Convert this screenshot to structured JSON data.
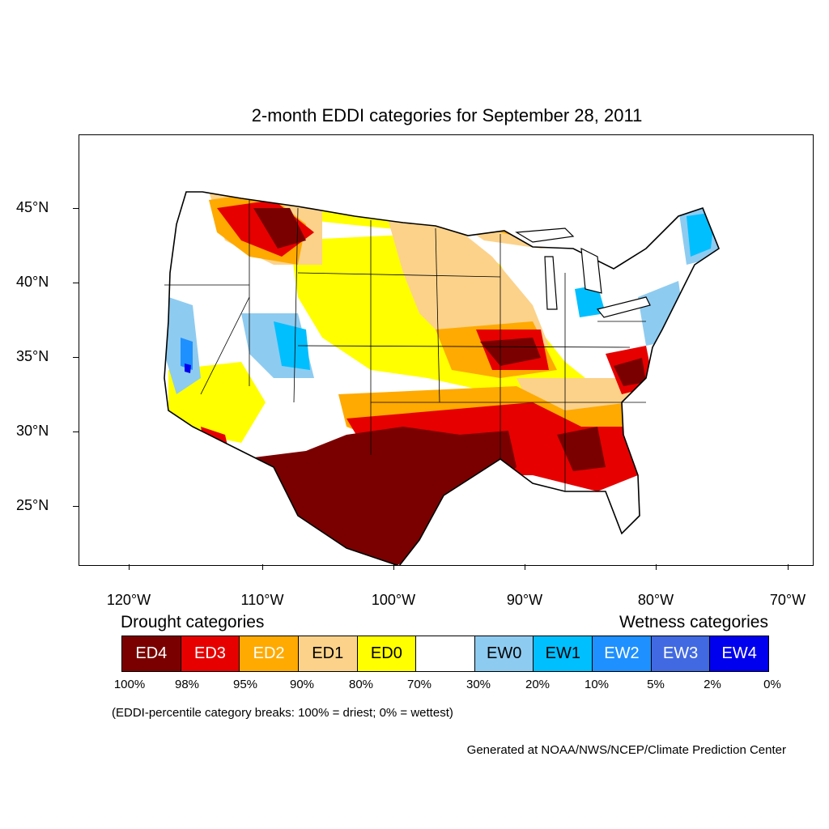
{
  "title": "2-month EDDI categories for September 28, 2011",
  "map": {
    "region": "Contiguous United States",
    "lon_range": [
      -124.5,
      -68.5
    ],
    "lat_range": [
      21,
      49.5
    ],
    "lat_labels": [
      {
        "value": 45,
        "label": "45°N"
      },
      {
        "value": 40,
        "label": "40°N"
      },
      {
        "value": 35,
        "label": "35°N"
      },
      {
        "value": 30,
        "label": "30°N"
      },
      {
        "value": 25,
        "label": "25°N"
      }
    ],
    "lon_labels": [
      {
        "value": -120,
        "label": "120°W"
      },
      {
        "value": -110,
        "label": "110°W"
      },
      {
        "value": -100,
        "label": "100°W"
      },
      {
        "value": -90,
        "label": "90°W"
      },
      {
        "value": -80,
        "label": "80°W"
      },
      {
        "value": -70,
        "label": "70°W"
      }
    ]
  },
  "legend": {
    "drought_heading": "Drought categories",
    "wetness_heading": "Wetness categories",
    "categories": [
      {
        "label": "ED4",
        "color": "#7a0000",
        "text_color": "#ffffff"
      },
      {
        "label": "ED3",
        "color": "#e60000",
        "text_color": "#ffffff"
      },
      {
        "label": "ED2",
        "color": "#ffaa00",
        "text_color": "#ffffff"
      },
      {
        "label": "ED1",
        "color": "#fcd28a",
        "text_color": "#000000"
      },
      {
        "label": "ED0",
        "color": "#ffff00",
        "text_color": "#000000"
      },
      {
        "label": "",
        "color": "#ffffff",
        "text_color": "#000000"
      },
      {
        "label": "EW0",
        "color": "#8ecbf0",
        "text_color": "#000000"
      },
      {
        "label": "EW1",
        "color": "#00bfff",
        "text_color": "#000000"
      },
      {
        "label": "EW2",
        "color": "#1e90ff",
        "text_color": "#ffffff"
      },
      {
        "label": "EW3",
        "color": "#4169e1",
        "text_color": "#ffffff"
      },
      {
        "label": "EW4",
        "color": "#0000ee",
        "text_color": "#ffffff"
      }
    ],
    "breaks": [
      "100%",
      "98%",
      "95%",
      "90%",
      "80%",
      "70%",
      "30%",
      "20%",
      "10%",
      "5%",
      "2%",
      "0%"
    ],
    "note": "(EDDI-percentile category breaks: 100% = driest; 0% = wettest)"
  },
  "credit": "Generated at NOAA/NWS/NCEP/Climate Prediction Center"
}
